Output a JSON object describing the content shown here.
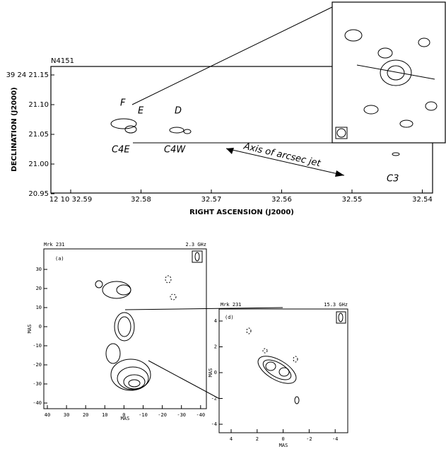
{
  "top_panel": {
    "title": "N4151",
    "ylabel": "DECLINATION (J2000)",
    "xlabel": "RIGHT ASCENSION (J2000)",
    "yticks": [
      "39 24 21.15",
      "21.10",
      "21.05",
      "21.00",
      "20.95"
    ],
    "xticks": [
      "12 10 32.59",
      "32.58",
      "32.57",
      "32.56",
      "32.55",
      "32.54"
    ],
    "annotations": [
      "F",
      "E",
      "D",
      "C4E",
      "C4W",
      "Axis of arcsec jet",
      "C3"
    ]
  },
  "left_panel": {
    "source": "Mrk 231",
    "frequency": "2.3 GHz",
    "label": "(a)",
    "ylabel": "MAS",
    "xlabel": "MAS",
    "yticks": [
      "30",
      "20",
      "10",
      "0",
      "-10",
      "-20",
      "-30",
      "-40"
    ],
    "xticks": [
      "40",
      "30",
      "20",
      "10",
      "0",
      "-10",
      "-20",
      "-30",
      "-40"
    ]
  },
  "right_panel": {
    "source": "Mrk 231",
    "frequency": "15.3 GHz",
    "label": "(d)",
    "ylabel": "MAS",
    "xlabel": "MAS",
    "yticks": [
      "4",
      "2",
      "0",
      "-2",
      "-4"
    ],
    "xticks": [
      "4",
      "2",
      "0",
      "-2",
      "-4"
    ]
  }
}
